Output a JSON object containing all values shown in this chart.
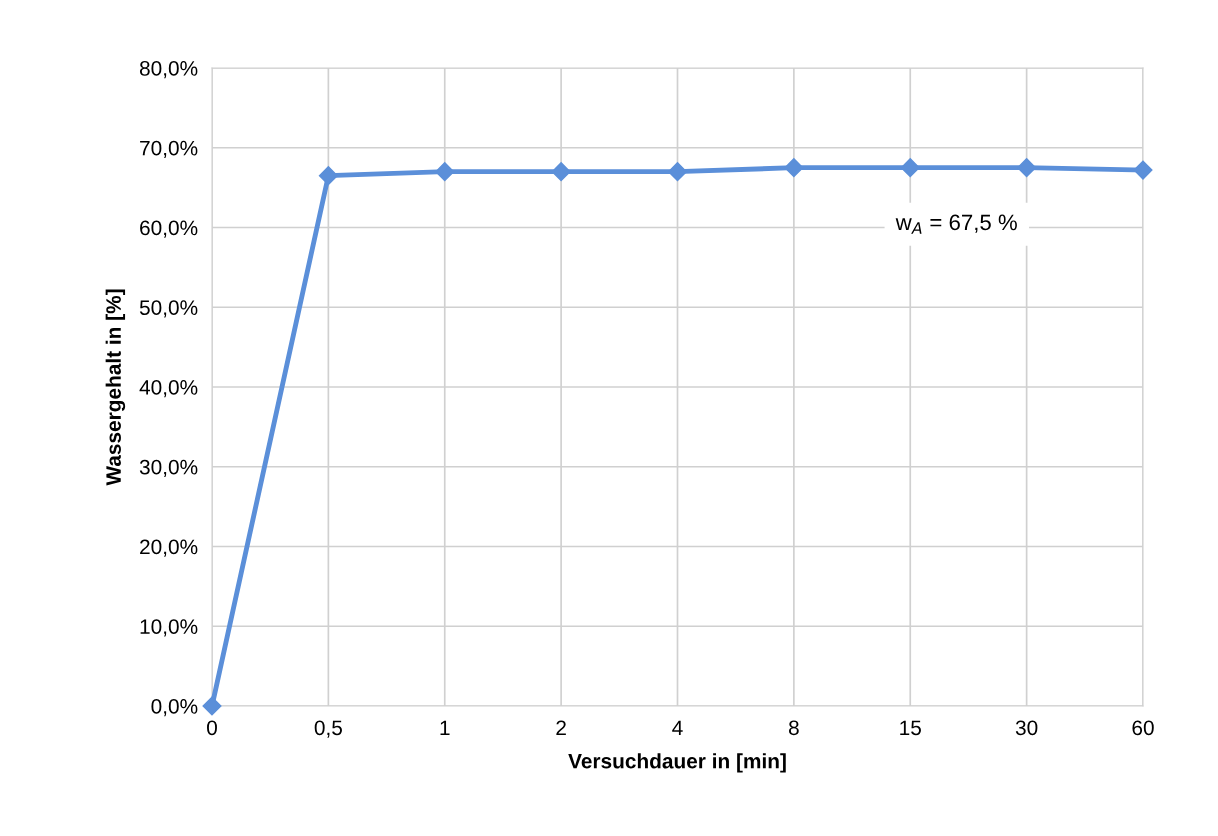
{
  "chart_data": {
    "type": "line",
    "xlabel": "Versuchdauer in [min]",
    "ylabel": "Wassergehalt in [%]",
    "categories": [
      "0",
      "0,5",
      "1",
      "2",
      "4",
      "8",
      "15",
      "30",
      "60"
    ],
    "series": [
      {
        "color": "#5b8fd9",
        "values": [
          0,
          66.5,
          67,
          67,
          67,
          67.5,
          67.5,
          67.5,
          67.2
        ]
      }
    ],
    "ylim": [
      0,
      80
    ],
    "yticks": [
      {
        "value": 0,
        "label": "0,0%"
      },
      {
        "value": 10,
        "label": "10,0%"
      },
      {
        "value": 20,
        "label": "20,0%"
      },
      {
        "value": 30,
        "label": "30,0%"
      },
      {
        "value": 40,
        "label": "40,0%"
      },
      {
        "value": 50,
        "label": "50,0%"
      },
      {
        "value": 60,
        "label": "60,0%"
      },
      {
        "value": 70,
        "label": "70,0%"
      },
      {
        "value": 80,
        "label": "80,0%"
      }
    ],
    "annotations": [
      "w$_{A}$ = 67,5 %"
    ],
    "grid": true,
    "marker": "diamond",
    "line_style": "solid"
  }
}
